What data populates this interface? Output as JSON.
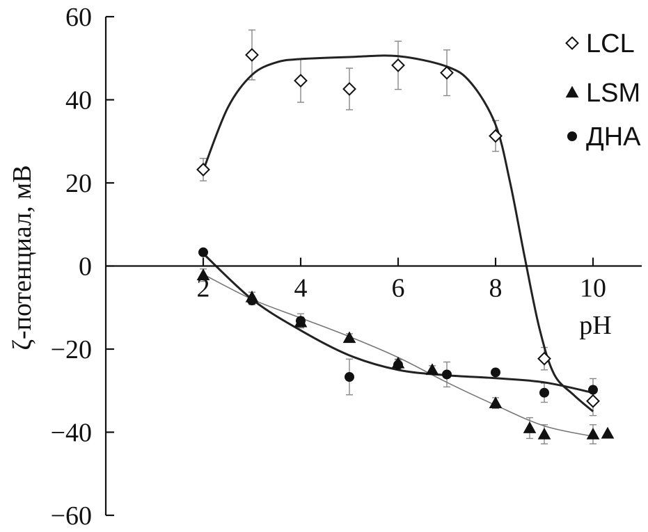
{
  "chart_data": {
    "type": "scatter",
    "xlabel": "pH",
    "ylabel": "ζ-потенциал, мВ",
    "xlim": [
      0,
      11
    ],
    "ylim": [
      -60,
      60
    ],
    "x_ticks": [
      2,
      4,
      6,
      8,
      10
    ],
    "y_ticks": [
      60,
      40,
      20,
      0,
      -20,
      -40,
      -60
    ],
    "x_tick_labels": [
      "2",
      "4",
      "6",
      "8",
      "10"
    ],
    "y_tick_labels": [
      "60",
      "40",
      "20",
      "0",
      "−20",
      "−40",
      "−60"
    ],
    "grid": false,
    "legend_position": "top-right",
    "series": [
      {
        "name": "LCL",
        "marker": "diamond-open",
        "points": [
          {
            "x": 2,
            "y": 23.2,
            "err": 2.7
          },
          {
            "x": 3,
            "y": 50.8,
            "err": 6.0
          },
          {
            "x": 4,
            "y": 44.6,
            "err": 5.2
          },
          {
            "x": 5,
            "y": 42.6,
            "err": 5.0
          },
          {
            "x": 6,
            "y": 48.3,
            "err": 5.8
          },
          {
            "x": 7,
            "y": 46.5,
            "err": 5.5
          },
          {
            "x": 8,
            "y": 31.3,
            "err": 3.7
          },
          {
            "x": 9,
            "y": -22.3,
            "err": 2.7
          },
          {
            "x": 10,
            "y": -32.5,
            "err": 3.5
          }
        ],
        "fit": [
          [
            2,
            23
          ],
          [
            2.5,
            38
          ],
          [
            3,
            46
          ],
          [
            3.5,
            49
          ],
          [
            4,
            49.8
          ],
          [
            5,
            50.3
          ],
          [
            6,
            50.5
          ],
          [
            7,
            48
          ],
          [
            7.5,
            44
          ],
          [
            8,
            34
          ],
          [
            8.3,
            20
          ],
          [
            8.6,
            2
          ],
          [
            8.9,
            -15
          ],
          [
            9.2,
            -26
          ],
          [
            9.6,
            -31
          ],
          [
            10,
            -35
          ]
        ]
      },
      {
        "name": "LSM",
        "marker": "triangle-filled",
        "points": [
          {
            "x": 2,
            "y": -2.2,
            "err": 1.5
          },
          {
            "x": 3,
            "y": -7.5,
            "err": 1.2
          },
          {
            "x": 4,
            "y": -13.5,
            "err": 1.2
          },
          {
            "x": 5,
            "y": -17.3,
            "err": 1.0
          },
          {
            "x": 6,
            "y": -23.4,
            "err": 1.0
          },
          {
            "x": 6.7,
            "y": -25.0,
            "err": 1.0
          },
          {
            "x": 8,
            "y": -33.0,
            "err": 1.3
          },
          {
            "x": 8.7,
            "y": -39.0,
            "err": 2.5
          },
          {
            "x": 9,
            "y": -40.5,
            "err": 2.3
          },
          {
            "x": 10,
            "y": -40.5,
            "err": 2.3
          },
          {
            "x": 10.3,
            "y": -40.3,
            "err": 0
          }
        ],
        "fit": [
          [
            2,
            -2
          ],
          [
            3,
            -8
          ],
          [
            4,
            -12.5
          ],
          [
            5,
            -17
          ],
          [
            6,
            -22
          ],
          [
            7,
            -28
          ],
          [
            8,
            -33.5
          ],
          [
            9,
            -38.5
          ],
          [
            10,
            -41
          ]
        ]
      },
      {
        "name": "ДНА",
        "marker": "circle-filled",
        "points": [
          {
            "x": 2,
            "y": 3.3,
            "err": 0
          },
          {
            "x": 3,
            "y": -8.3,
            "err": 1.0
          },
          {
            "x": 4,
            "y": -13.2,
            "err": 1.7
          },
          {
            "x": 5,
            "y": -26.7,
            "err": 4.3
          },
          {
            "x": 6,
            "y": -23.8,
            "err": 1.2
          },
          {
            "x": 7,
            "y": -26.1,
            "err": 3.0
          },
          {
            "x": 8,
            "y": -25.6,
            "err": 0
          },
          {
            "x": 9,
            "y": -30.5,
            "err": 2.3
          },
          {
            "x": 10,
            "y": -29.8,
            "err": 2.7
          }
        ],
        "fit": [
          [
            2,
            3
          ],
          [
            3,
            -8
          ],
          [
            4,
            -15.5
          ],
          [
            5,
            -21.5
          ],
          [
            6,
            -25
          ],
          [
            7,
            -26.3
          ],
          [
            8,
            -27
          ],
          [
            9,
            -28
          ],
          [
            10,
            -30.5
          ]
        ]
      }
    ]
  }
}
